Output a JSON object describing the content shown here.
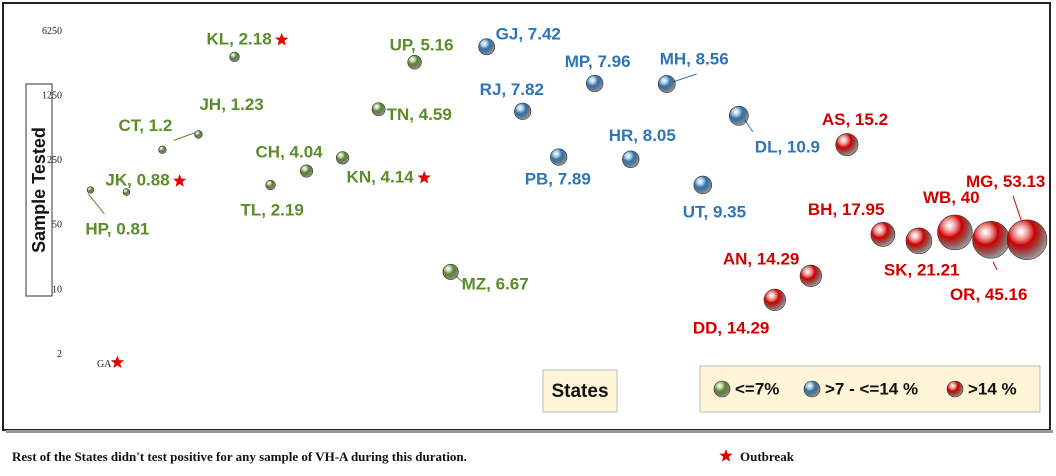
{
  "chart_data": {
    "type": "scatter",
    "y_label": "Sample Tested",
    "x_label": "States",
    "log_y": true,
    "ylim": [
      1.2,
      9500
    ],
    "yticks": [
      2,
      10,
      50,
      250,
      1250,
      6250
    ],
    "xlim": [
      -0.15,
      26.5
    ],
    "groups": [
      {
        "name": "<=7%",
        "color": "#5b8c2a"
      },
      {
        "name": ">7 - <=14 %",
        "color": "#2e75b6"
      },
      {
        "name": ">14 %",
        "color": "#d10000"
      }
    ],
    "outbreak_color": "#e00000",
    "points": {
      "labels": [
        "GA",
        "HP, 0.81",
        "JK, 0.88",
        "CT, 1.2",
        "JH, 1.23",
        "KL, 2.18",
        "TL, 2.19",
        "CH, 4.04",
        "KN, 4.14",
        "TN, 4.59",
        "UP, 5.16",
        "MZ, 6.67",
        "GJ, 7.42",
        "RJ, 7.82",
        "PB, 7.89",
        "MP, 7.96",
        "HR, 8.05",
        "MH, 8.56",
        "UT, 9.35",
        "DL, 10.9",
        "DD, 14.29",
        "AN, 14.29",
        "AS, 15.2",
        "BH, 17.95",
        "SK, 21.21",
        "WB, 40",
        "OR, 45.16",
        "MG, 53.13"
      ],
      "x": [
        0.75,
        0,
        1,
        2,
        3,
        4,
        5,
        6,
        7,
        8,
        9,
        10,
        11,
        12,
        13,
        14,
        15,
        16,
        17,
        18,
        19,
        20,
        21,
        22,
        23,
        24,
        25,
        26
      ],
      "y": [
        1.64,
        121,
        115,
        330,
        483,
        3340,
        137,
        194,
        270,
        905,
        2930,
        15.7,
        4300,
        860,
        275,
        1720,
        260,
        1700,
        137,
        770,
        7.8,
        14.2,
        375,
        40,
        34,
        42,
        35,
        35
      ],
      "size": [
        null,
        0.81,
        0.88,
        1.2,
        1.23,
        2.18,
        2.19,
        4.04,
        4.14,
        4.59,
        5.16,
        6.67,
        7.42,
        7.82,
        7.89,
        7.96,
        8.05,
        8.56,
        9.35,
        10.9,
        14.29,
        14.29,
        15.2,
        17.95,
        21.21,
        40,
        45.16,
        53.13
      ],
      "group": [
        null,
        0,
        0,
        0,
        0,
        0,
        0,
        0,
        0,
        0,
        0,
        0,
        1,
        1,
        1,
        1,
        1,
        1,
        1,
        1,
        2,
        2,
        2,
        2,
        2,
        2,
        2,
        2
      ],
      "outbreak": [
        true,
        false,
        true,
        false,
        false,
        true,
        false,
        false,
        true,
        false,
        false,
        false,
        false,
        false,
        false,
        false,
        false,
        false,
        false,
        false,
        false,
        false,
        false,
        false,
        false,
        false,
        false,
        false
      ]
    },
    "note": "Rest of the States didn't test positive for any sample of VH-A during this duration.",
    "outbreak_label": "Outbreak"
  }
}
